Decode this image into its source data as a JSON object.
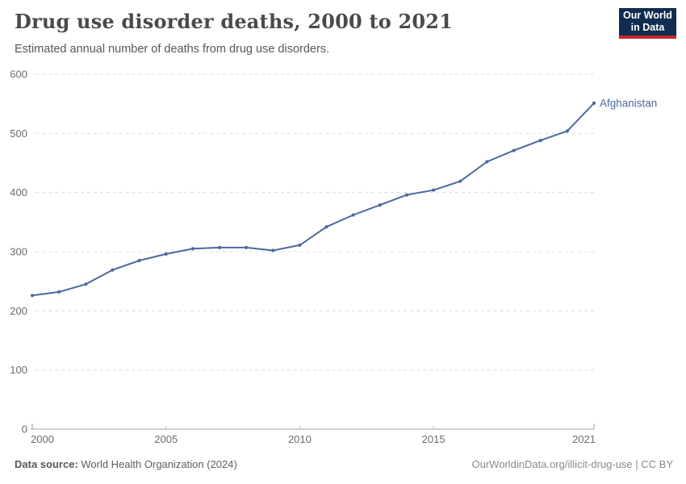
{
  "header": {
    "title": "Drug use disorder deaths, 2000 to 2021",
    "subtitle": "Estimated annual number of deaths from drug use disorders.",
    "logo": {
      "line1": "Our World",
      "line2": "in Data",
      "bg_color": "#102d4f",
      "accent_color": "#c5262e"
    }
  },
  "chart_data": {
    "type": "line",
    "title": "Drug use disorder deaths, 2000 to 2021",
    "subtitle": "Estimated annual number of deaths from drug use disorders.",
    "x": [
      2000,
      2001,
      2002,
      2003,
      2004,
      2005,
      2006,
      2007,
      2008,
      2009,
      2010,
      2011,
      2012,
      2013,
      2014,
      2015,
      2016,
      2017,
      2018,
      2019,
      2020,
      2021
    ],
    "series": [
      {
        "name": "Afghanistan",
        "color": "#4c68a0",
        "values": [
          226,
          232,
          245,
          269,
          285,
          296,
          305,
          307,
          307,
          302,
          311,
          342,
          362,
          379,
          396,
          404,
          419,
          452,
          471,
          488,
          504,
          551
        ]
      }
    ],
    "xlabel": "",
    "ylabel": "",
    "ylim": [
      0,
      600
    ],
    "yticks": [
      0,
      100,
      200,
      300,
      400,
      500,
      600
    ],
    "xticks": [
      2000,
      2005,
      2010,
      2015,
      2021
    ],
    "grid": "horizontal-dashed",
    "grid_color": "#dcdcdc",
    "axis_color": "#a3a3a3",
    "tick_label_color": "#6c6c6c",
    "legend_position": "end-of-line-label"
  },
  "footer": {
    "source_label": "Data source:",
    "source_value": " World Health Organization (2024)",
    "credit": "OurWorldinData.org/illicit-drug-use | CC BY"
  }
}
